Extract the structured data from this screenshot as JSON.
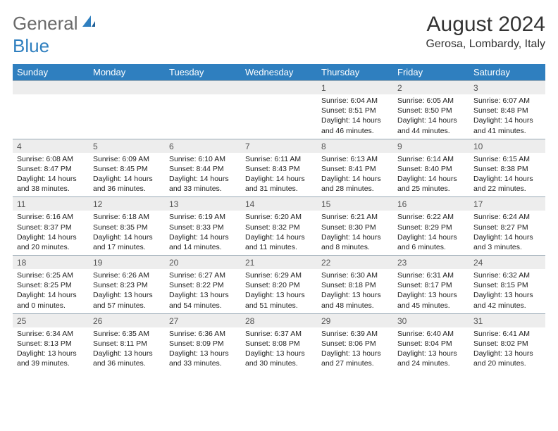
{
  "logo": {
    "text1": "General",
    "text2": "Blue"
  },
  "title": "August 2024",
  "location": "Gerosa, Lombardy, Italy",
  "colors": {
    "header_bg": "#2f7fbf",
    "header_text": "#ffffff",
    "daynum_bg": "#ededed",
    "border": "#9aaab6",
    "logo_gray": "#6a6a6a",
    "logo_blue": "#2f7fbf"
  },
  "weekdays": [
    "Sunday",
    "Monday",
    "Tuesday",
    "Wednesday",
    "Thursday",
    "Friday",
    "Saturday"
  ],
  "weeks": [
    [
      null,
      null,
      null,
      null,
      {
        "n": "1",
        "sr": "Sunrise: 6:04 AM",
        "ss": "Sunset: 8:51 PM",
        "dl": "Daylight: 14 hours and 46 minutes."
      },
      {
        "n": "2",
        "sr": "Sunrise: 6:05 AM",
        "ss": "Sunset: 8:50 PM",
        "dl": "Daylight: 14 hours and 44 minutes."
      },
      {
        "n": "3",
        "sr": "Sunrise: 6:07 AM",
        "ss": "Sunset: 8:48 PM",
        "dl": "Daylight: 14 hours and 41 minutes."
      }
    ],
    [
      {
        "n": "4",
        "sr": "Sunrise: 6:08 AM",
        "ss": "Sunset: 8:47 PM",
        "dl": "Daylight: 14 hours and 38 minutes."
      },
      {
        "n": "5",
        "sr": "Sunrise: 6:09 AM",
        "ss": "Sunset: 8:45 PM",
        "dl": "Daylight: 14 hours and 36 minutes."
      },
      {
        "n": "6",
        "sr": "Sunrise: 6:10 AM",
        "ss": "Sunset: 8:44 PM",
        "dl": "Daylight: 14 hours and 33 minutes."
      },
      {
        "n": "7",
        "sr": "Sunrise: 6:11 AM",
        "ss": "Sunset: 8:43 PM",
        "dl": "Daylight: 14 hours and 31 minutes."
      },
      {
        "n": "8",
        "sr": "Sunrise: 6:13 AM",
        "ss": "Sunset: 8:41 PM",
        "dl": "Daylight: 14 hours and 28 minutes."
      },
      {
        "n": "9",
        "sr": "Sunrise: 6:14 AM",
        "ss": "Sunset: 8:40 PM",
        "dl": "Daylight: 14 hours and 25 minutes."
      },
      {
        "n": "10",
        "sr": "Sunrise: 6:15 AM",
        "ss": "Sunset: 8:38 PM",
        "dl": "Daylight: 14 hours and 22 minutes."
      }
    ],
    [
      {
        "n": "11",
        "sr": "Sunrise: 6:16 AM",
        "ss": "Sunset: 8:37 PM",
        "dl": "Daylight: 14 hours and 20 minutes."
      },
      {
        "n": "12",
        "sr": "Sunrise: 6:18 AM",
        "ss": "Sunset: 8:35 PM",
        "dl": "Daylight: 14 hours and 17 minutes."
      },
      {
        "n": "13",
        "sr": "Sunrise: 6:19 AM",
        "ss": "Sunset: 8:33 PM",
        "dl": "Daylight: 14 hours and 14 minutes."
      },
      {
        "n": "14",
        "sr": "Sunrise: 6:20 AM",
        "ss": "Sunset: 8:32 PM",
        "dl": "Daylight: 14 hours and 11 minutes."
      },
      {
        "n": "15",
        "sr": "Sunrise: 6:21 AM",
        "ss": "Sunset: 8:30 PM",
        "dl": "Daylight: 14 hours and 8 minutes."
      },
      {
        "n": "16",
        "sr": "Sunrise: 6:22 AM",
        "ss": "Sunset: 8:29 PM",
        "dl": "Daylight: 14 hours and 6 minutes."
      },
      {
        "n": "17",
        "sr": "Sunrise: 6:24 AM",
        "ss": "Sunset: 8:27 PM",
        "dl": "Daylight: 14 hours and 3 minutes."
      }
    ],
    [
      {
        "n": "18",
        "sr": "Sunrise: 6:25 AM",
        "ss": "Sunset: 8:25 PM",
        "dl": "Daylight: 14 hours and 0 minutes."
      },
      {
        "n": "19",
        "sr": "Sunrise: 6:26 AM",
        "ss": "Sunset: 8:23 PM",
        "dl": "Daylight: 13 hours and 57 minutes."
      },
      {
        "n": "20",
        "sr": "Sunrise: 6:27 AM",
        "ss": "Sunset: 8:22 PM",
        "dl": "Daylight: 13 hours and 54 minutes."
      },
      {
        "n": "21",
        "sr": "Sunrise: 6:29 AM",
        "ss": "Sunset: 8:20 PM",
        "dl": "Daylight: 13 hours and 51 minutes."
      },
      {
        "n": "22",
        "sr": "Sunrise: 6:30 AM",
        "ss": "Sunset: 8:18 PM",
        "dl": "Daylight: 13 hours and 48 minutes."
      },
      {
        "n": "23",
        "sr": "Sunrise: 6:31 AM",
        "ss": "Sunset: 8:17 PM",
        "dl": "Daylight: 13 hours and 45 minutes."
      },
      {
        "n": "24",
        "sr": "Sunrise: 6:32 AM",
        "ss": "Sunset: 8:15 PM",
        "dl": "Daylight: 13 hours and 42 minutes."
      }
    ],
    [
      {
        "n": "25",
        "sr": "Sunrise: 6:34 AM",
        "ss": "Sunset: 8:13 PM",
        "dl": "Daylight: 13 hours and 39 minutes."
      },
      {
        "n": "26",
        "sr": "Sunrise: 6:35 AM",
        "ss": "Sunset: 8:11 PM",
        "dl": "Daylight: 13 hours and 36 minutes."
      },
      {
        "n": "27",
        "sr": "Sunrise: 6:36 AM",
        "ss": "Sunset: 8:09 PM",
        "dl": "Daylight: 13 hours and 33 minutes."
      },
      {
        "n": "28",
        "sr": "Sunrise: 6:37 AM",
        "ss": "Sunset: 8:08 PM",
        "dl": "Daylight: 13 hours and 30 minutes."
      },
      {
        "n": "29",
        "sr": "Sunrise: 6:39 AM",
        "ss": "Sunset: 8:06 PM",
        "dl": "Daylight: 13 hours and 27 minutes."
      },
      {
        "n": "30",
        "sr": "Sunrise: 6:40 AM",
        "ss": "Sunset: 8:04 PM",
        "dl": "Daylight: 13 hours and 24 minutes."
      },
      {
        "n": "31",
        "sr": "Sunrise: 6:41 AM",
        "ss": "Sunset: 8:02 PM",
        "dl": "Daylight: 13 hours and 20 minutes."
      }
    ]
  ]
}
